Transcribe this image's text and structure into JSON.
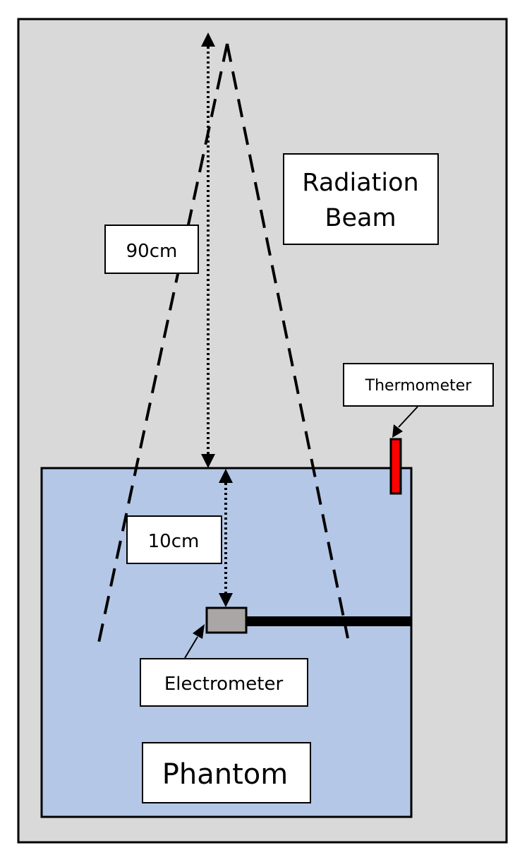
{
  "labels": {
    "radiation_beam_line1": "Radiation",
    "radiation_beam_line2": "Beam",
    "distance_90": "90cm",
    "distance_10": "10cm",
    "thermometer": "Thermometer",
    "electrometer": "Electrometer",
    "phantom": "Phantom"
  },
  "colors": {
    "outer_frame_fill": "#d9d9d9",
    "phantom_fill": "#b4c7e7",
    "thermometer_fill": "#ff0000",
    "electrometer_fill": "#aaa6a6",
    "cable": "#000000",
    "label_box_fill": "#ffffff",
    "stroke": "#000000"
  }
}
